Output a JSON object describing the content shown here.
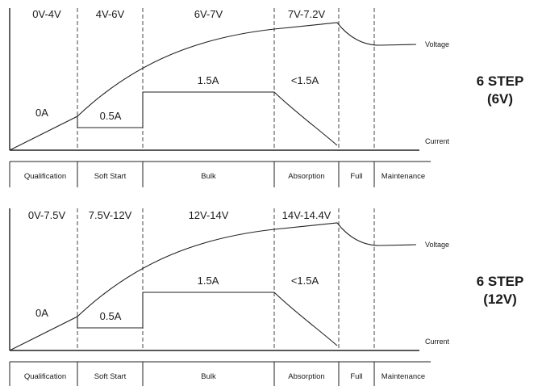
{
  "panels": [
    {
      "title_line1": "6 STEP",
      "title_line2": "(6V)",
      "voltage_ranges": [
        "0V-4V",
        "4V-6V",
        "6V-7V",
        "7V-7.2V"
      ],
      "current_labels": [
        "0A",
        "0.5A",
        "1.5A",
        "<1.5A"
      ],
      "voltage_label": "Voltage",
      "current_label": "Current",
      "stages": [
        "Qualification",
        "Soft Start",
        "Bulk",
        "Absorption",
        "Full",
        "Maintenance"
      ]
    },
    {
      "title_line1": "6 STEP",
      "title_line2": "(12V)",
      "voltage_ranges": [
        "0V-7.5V",
        "7.5V-12V",
        "12V-14V",
        "14V-14.4V"
      ],
      "current_labels": [
        "0A",
        "0.5A",
        "1.5A",
        "<1.5A"
      ],
      "voltage_label": "Voltage",
      "current_label": "Current",
      "stages": [
        "Qualification",
        "Soft Start",
        "Bulk",
        "Absorption",
        "Full",
        "Maintenance"
      ]
    }
  ]
}
